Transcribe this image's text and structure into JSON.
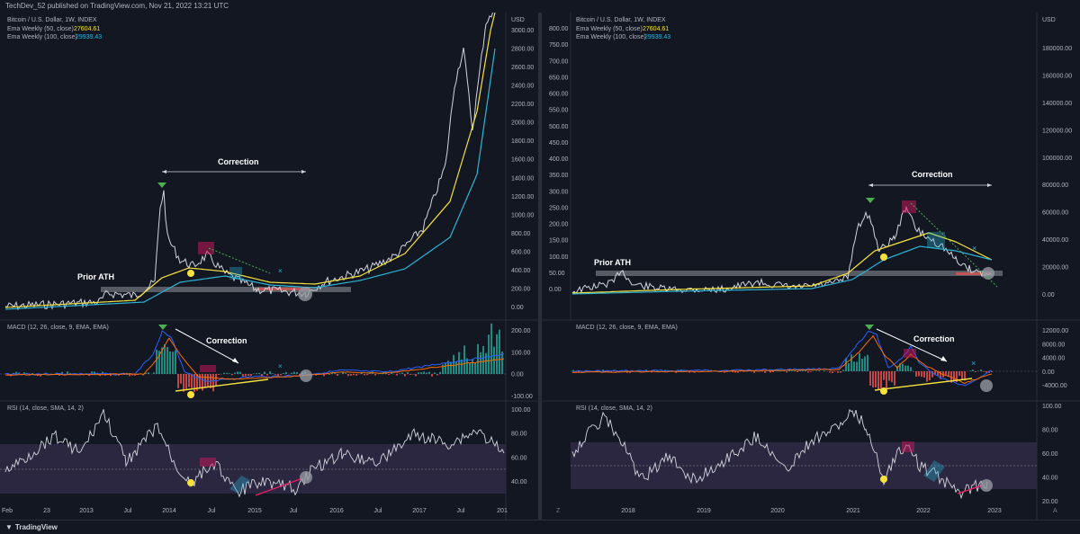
{
  "header": {
    "text": "TechDev_52 published on TradingView.com, Nov 21, 2022 13:21 UTC"
  },
  "footer": {
    "brand": "TradingView"
  },
  "left": {
    "price_legend": [
      "Bitcoin / U.S. Dollar, 1W, INDEX"
    ],
    "ema50": {
      "label": "Ema Weekly (50, close)",
      "value": "27604.61"
    },
    "ema100": {
      "label": "Ema Weekly (100, close)",
      "value": "29939.43"
    },
    "currency": "USD",
    "price_ticks": [
      "3000.00",
      "2800.00",
      "2600.00",
      "2400.00",
      "2200.00",
      "2000.00",
      "1800.00",
      "1600.00",
      "1400.00",
      "1200.00",
      "1000.00",
      "800.00",
      "600.00",
      "400.00",
      "200.00",
      "0.00"
    ],
    "macd_legend": "MACD (12, 26, close, 9, EMA, EMA)",
    "macd_ticks": [
      "200.00",
      "100.00",
      "0.00",
      "-100.00"
    ],
    "rsi_legend": "RSI (14, close, SMA, 14, 2)",
    "rsi_ticks": [
      "100.00",
      "80.00",
      "60.00",
      "40.00"
    ],
    "x_ticks": [
      "Feb",
      "23",
      "2013",
      "Jul",
      "2014",
      "Jul",
      "2015",
      "Jul",
      "2016",
      "Jul",
      "2017",
      "Jul",
      "201"
    ],
    "annotations": {
      "prior_ath": "Prior ATH",
      "correction": "Correction",
      "correction_macd": "Correction"
    }
  },
  "right": {
    "price_legend": [
      "Bitcoin / U.S. Dollar, 1W, INDEX"
    ],
    "ema50": {
      "label": "Ema Weekly (50, close)",
      "value": "27604.61"
    },
    "ema100": {
      "label": "Ema Weekly (100, close)",
      "value": "29939.43"
    },
    "currency": "USD",
    "inner_ticks": [
      "800.00",
      "750.00",
      "700.00",
      "650.00",
      "600.00",
      "550.00",
      "500.00",
      "450.00",
      "400.00",
      "350.00",
      "300.00",
      "250.00",
      "200.00",
      "150.00",
      "100.00",
      "50.00",
      "0.00"
    ],
    "price_ticks": [
      "180000.00",
      "160000.00",
      "140000.00",
      "120000.00",
      "100000.00",
      "80000.00",
      "60000.00",
      "40000.00",
      "20000.00",
      "0.00"
    ],
    "macd_legend": "MACD (12, 26, close, 9, EMA, EMA)",
    "macd_ticks": [
      "12000.00",
      "8000.00",
      "4000.00",
      "0.00",
      "-4000.00"
    ],
    "rsi_legend": "RSI (14, close, SMA, 14, 2)",
    "rsi_ticks": [
      "100.00",
      "80.00",
      "60.00",
      "40.00",
      "20.00"
    ],
    "x_ticks": [
      "2018",
      "2019",
      "2020",
      "2021",
      "2022",
      "2023"
    ],
    "corner_left": "Z",
    "corner_right": "A",
    "annotations": {
      "prior_ath": "Prior ATH",
      "correction": "Correction",
      "correction_macd": "Correction"
    }
  },
  "colors": {
    "ema50": "#f7e23c",
    "ema100": "#2cb4d6",
    "macd": "#2962ff",
    "signal": "#ff6d00",
    "rsi": "#d1d4dc",
    "rsi_band": "#2b2740",
    "hist_up": "#26a69a",
    "hist_down": "#ef5350"
  },
  "chart_data": [
    {
      "type": "line",
      "title": "Bitcoin / U.S. Dollar, 1W, INDEX",
      "x": [
        "2013",
        "2014",
        "2015",
        "2016",
        "2017",
        "2017-07"
      ],
      "series": [
        {
          "name": "Bitcoin / U.S. Dollar",
          "values": [
            13,
            800,
            250,
            430,
            1000,
            3000
          ]
        }
      ],
      "ylim": [
        0,
        3000
      ]
    },
    {
      "type": "line",
      "title": "Bitcoin / U.S. Dollar, 1W, INDEX",
      "x": [
        "2018",
        "2019",
        "2020",
        "2021",
        "2022",
        "2023"
      ],
      "series": [
        {
          "name": "Bitcoin / U.S. Dollar",
          "values": [
            13000,
            3800,
            7200,
            30000,
            47000,
            16000
          ]
        }
      ],
      "ylim": [
        0,
        180000
      ]
    }
  ]
}
